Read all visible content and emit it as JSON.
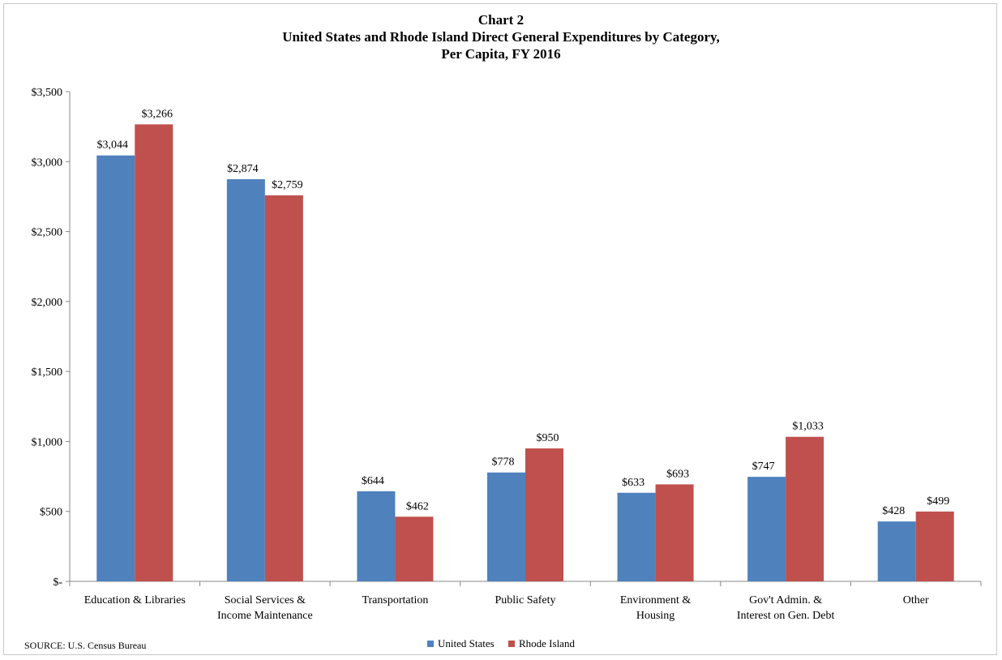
{
  "chart_data": {
    "type": "bar",
    "title": "Chart 2",
    "subtitle_lines": [
      "United States and Rhode Island Direct General Expenditures by Category,",
      "Per Capita,  FY 2016"
    ],
    "xlabel": "",
    "ylabel": "",
    "ylim": [
      0,
      3500
    ],
    "yticks": [
      0,
      500,
      1000,
      1500,
      2000,
      2500,
      3000,
      3500
    ],
    "ytick_labels": [
      "$-",
      "$500",
      "$1,000",
      "$1,500",
      "$2,000",
      "$2,500",
      "$3,000",
      "$3,500"
    ],
    "grid": false,
    "legend_position": "bottom",
    "categories": [
      [
        "Education & Libraries"
      ],
      [
        "Social Services &",
        "Income Maintenance"
      ],
      [
        "Transportation"
      ],
      [
        "Public Safety"
      ],
      [
        "Environment &",
        "Housing"
      ],
      [
        "Gov't Admin. &",
        "Interest on Gen. Debt"
      ],
      [
        "Other"
      ]
    ],
    "series": [
      {
        "name": "United States",
        "color": "#4f81bd",
        "values": [
          3044,
          2874,
          644,
          778,
          633,
          747,
          428
        ],
        "labels": [
          "$3,044",
          "$2,874",
          "$644",
          "$778",
          "$633",
          "$747",
          "$428"
        ]
      },
      {
        "name": "Rhode Island",
        "color": "#c0504d",
        "values": [
          3266,
          2759,
          462,
          950,
          693,
          1033,
          499
        ],
        "labels": [
          "$3,266",
          "$2,759",
          "$462",
          "$950",
          "$693",
          "$1,033",
          "$499"
        ]
      }
    ],
    "source": "SOURCE: U.S. Census Bureau"
  }
}
